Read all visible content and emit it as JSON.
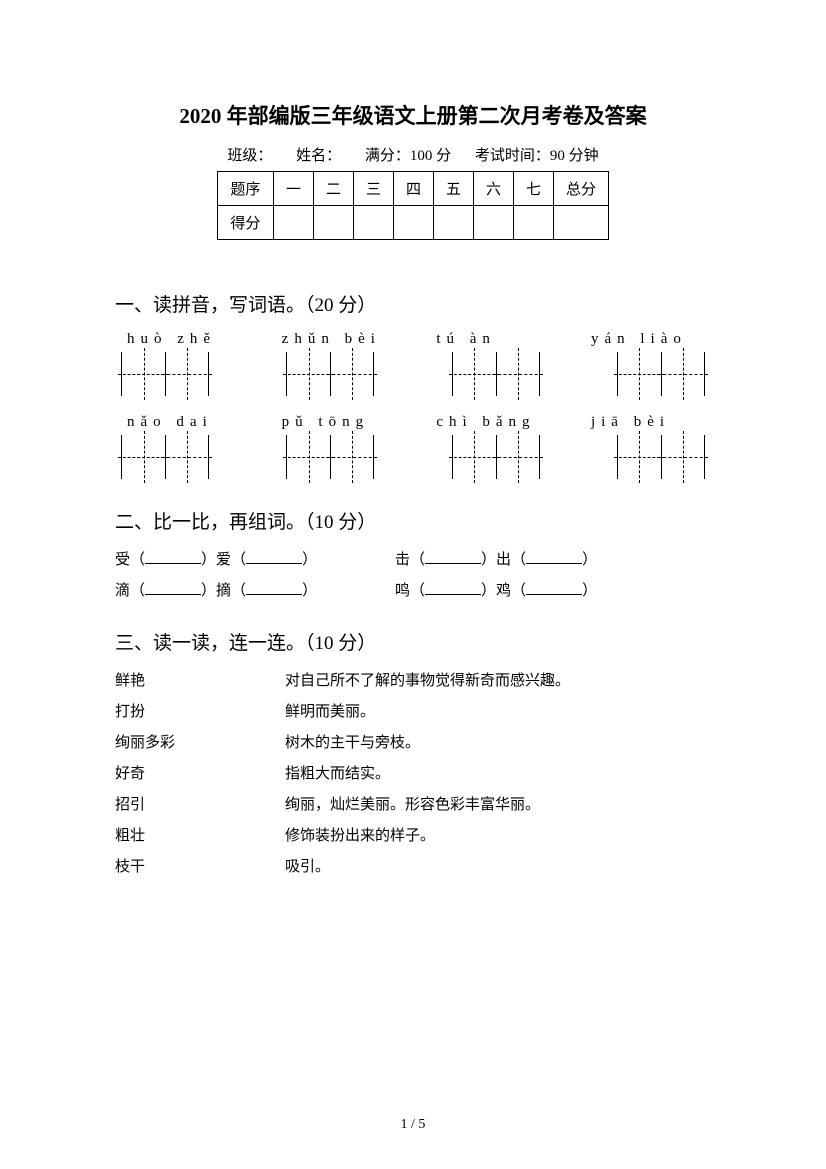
{
  "title": "2020 年部编版三年级语文上册第二次月考卷及答案",
  "info": {
    "class": "班级：",
    "name": "姓名：",
    "full": "满分：100 分",
    "time": "考试时间：90 分钟"
  },
  "score_table": {
    "header_label": "题序",
    "cols": [
      "一",
      "二",
      "三",
      "四",
      "五",
      "六",
      "七"
    ],
    "total": "总分",
    "row_label": "得分"
  },
  "s1": {
    "heading": "一、读拼音，写词语。（20 分）",
    "row1": [
      "huò  zhě",
      "zhǔn  bèi",
      "tú  àn",
      "yán  liào"
    ],
    "row2": [
      "nǎo  dai",
      "pǔ  tōng",
      "chì  bǎng",
      "jiā  bèi"
    ]
  },
  "s2": {
    "heading": "二、比一比，再组词。（10 分）",
    "pairs": [
      {
        "l1": "受",
        "l2": "爱",
        "r1": "击",
        "r2": "出"
      },
      {
        "l1": "滴",
        "l2": "摘",
        "r1": "鸣",
        "r2": "鸡"
      }
    ]
  },
  "s3": {
    "heading": "三、读一读，连一连。（10 分）",
    "items": [
      {
        "l": "鲜艳",
        "r": "对自己所不了解的事物觉得新奇而感兴趣。"
      },
      {
        "l": "打扮",
        "r": "鲜明而美丽。"
      },
      {
        "l": "绚丽多彩",
        "r": "树木的主干与旁枝。"
      },
      {
        "l": "好奇",
        "r": "指粗大而结实。"
      },
      {
        "l": "招引",
        "r": "绚丽，灿烂美丽。形容色彩丰富华丽。"
      },
      {
        "l": "粗壮",
        "r": "修饰装扮出来的样子。"
      },
      {
        "l": "枝干",
        "r": "吸引。"
      }
    ]
  },
  "page_num": "1 / 5",
  "colors": {
    "text": "#000000",
    "bg": "#ffffff"
  }
}
